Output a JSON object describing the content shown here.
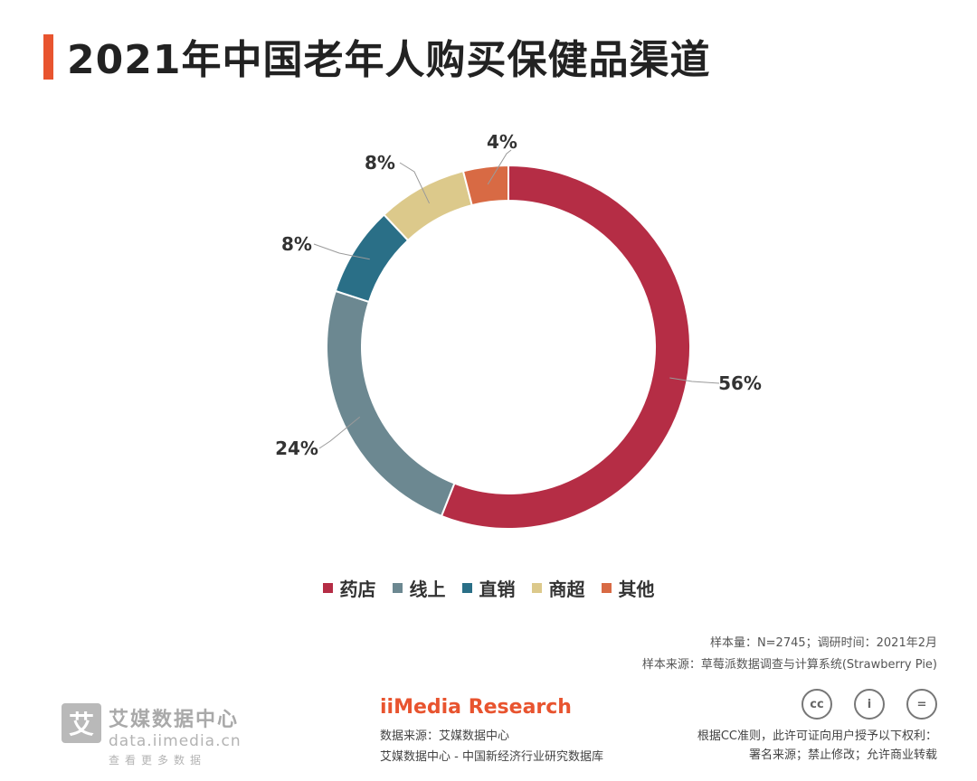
{
  "title": "2021年中国老年人购买保健品渠道",
  "chart_data": {
    "type": "pie",
    "title": "2021年中国老年人购买保健品渠道",
    "categories": [
      "药店",
      "线上",
      "直销",
      "商超",
      "其他"
    ],
    "values": [
      56,
      24,
      8,
      8,
      4
    ],
    "labels": [
      "56%",
      "24%",
      "8%",
      "8%",
      "4%"
    ],
    "colors": [
      "#b52d45",
      "#6c8891",
      "#2a6f87",
      "#dcc98b",
      "#d86a44"
    ],
    "unit": "%",
    "donut": true,
    "legend_position": "bottom"
  },
  "legend": [
    {
      "label": "药店",
      "color": "#b52d45"
    },
    {
      "label": "线上",
      "color": "#6c8891"
    },
    {
      "label": "直销",
      "color": "#2a6f87"
    },
    {
      "label": "商超",
      "color": "#dcc98b"
    },
    {
      "label": "其他",
      "color": "#d86a44"
    }
  ],
  "notes": {
    "sample": "样本量：N=2745；调研时间：2021年2月",
    "source": "样本来源：草莓派数据调查与计算系统(Strawberry Pie)"
  },
  "footer": {
    "logo_mark": "艾",
    "logo_cn": "艾媒数据中心",
    "logo_url": "data.iimedia.cn",
    "logo_slogan": "查看更多数据",
    "brand": "iiMedia Research",
    "source_line1": "数据来源：艾媒数据中心",
    "source_line2": "艾媒数据中心 - 中国新经济行业研究数据库",
    "cc_line1": "根据CC准则，此许可证向用户授予以下权利：",
    "cc_line2": "署名来源；禁止修改；允许商业转载",
    "cc_icons": [
      "cc",
      "i",
      "="
    ]
  }
}
